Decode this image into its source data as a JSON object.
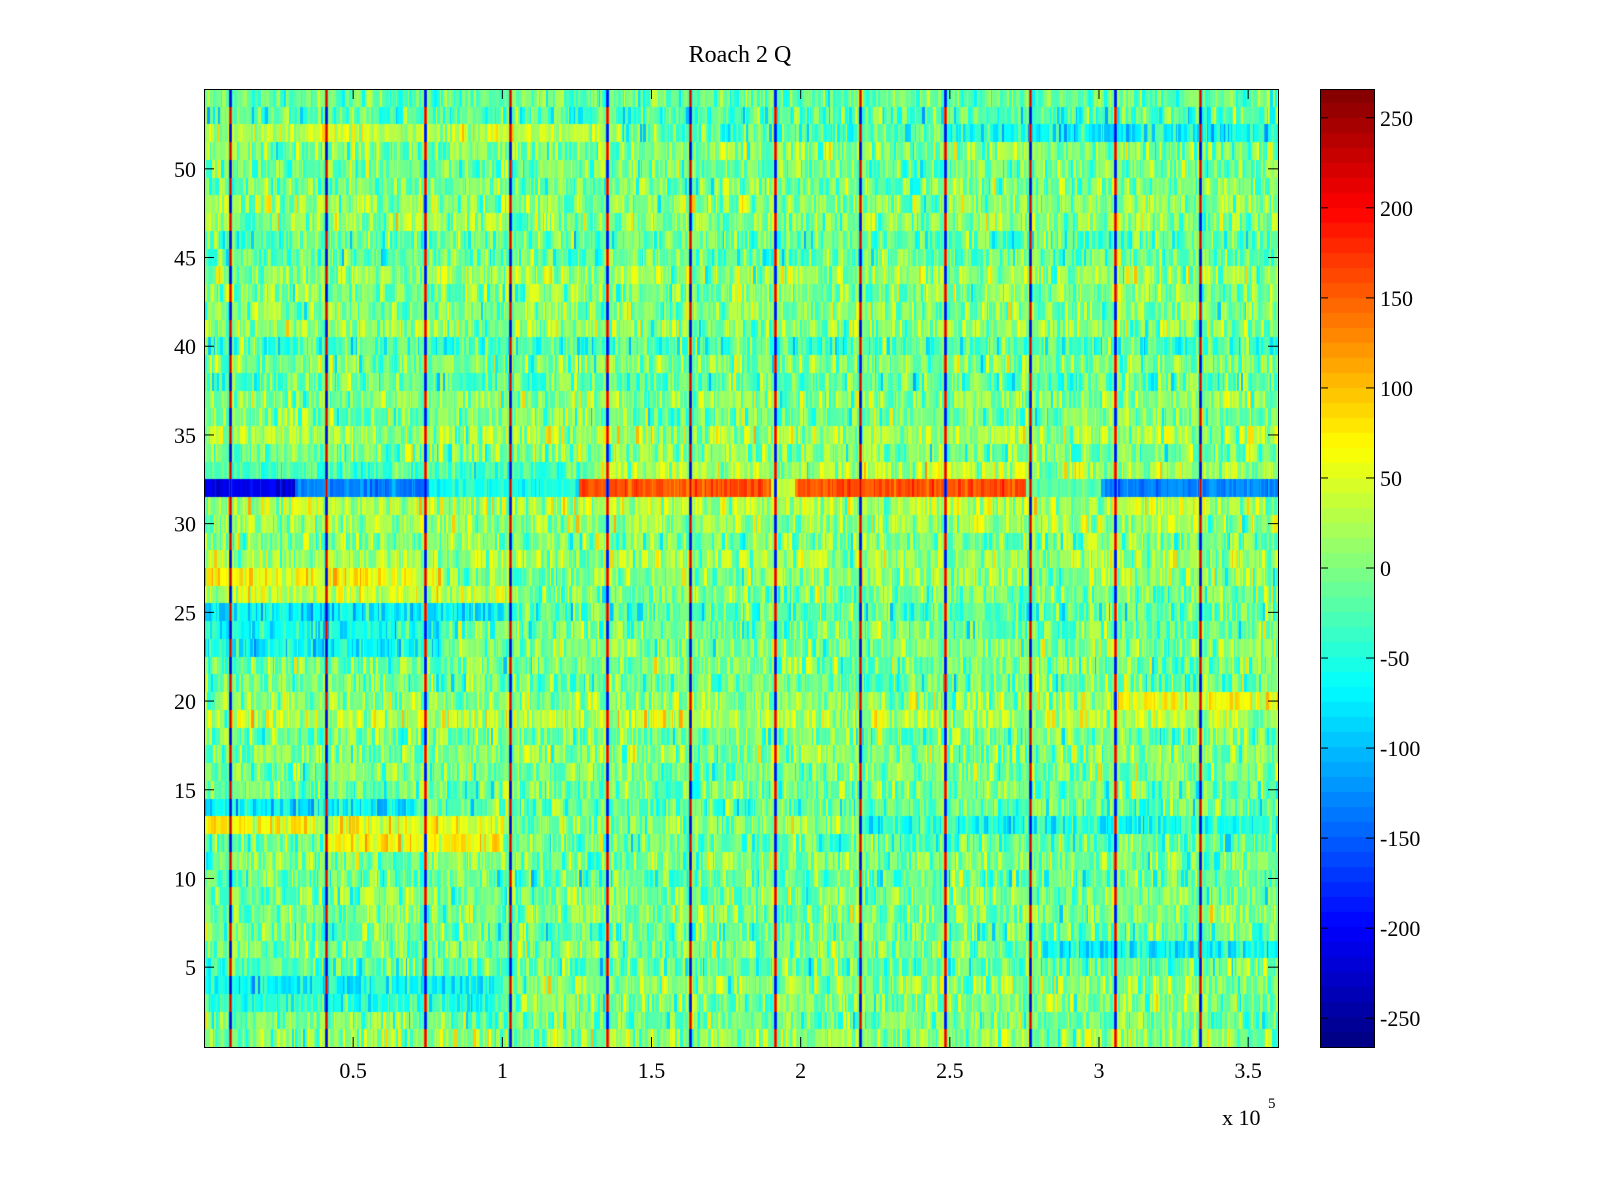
{
  "chart_data": {
    "type": "heatmap",
    "title": "Roach 2 Q",
    "xlabel": "",
    "ylabel": "",
    "x_multiplier_label": "x 10",
    "x_multiplier_exp": "5",
    "xlim": [
      0,
      3.6
    ],
    "ylim": [
      0.5,
      54.5
    ],
    "rows": 54,
    "xticks": [
      0.5,
      1,
      1.5,
      2,
      2.5,
      3,
      3.5
    ],
    "xtick_labels": [
      "0.5",
      "1",
      "1.5",
      "2",
      "2.5",
      "3",
      "3.5"
    ],
    "yticks": [
      5,
      10,
      15,
      20,
      25,
      30,
      35,
      40,
      45,
      50
    ],
    "ytick_labels": [
      "5",
      "10",
      "15",
      "20",
      "25",
      "30",
      "35",
      "40",
      "45",
      "50"
    ],
    "colormap": "jet",
    "clim": [
      -266,
      266
    ],
    "colorbar_ticks": [
      250,
      200,
      150,
      100,
      50,
      0,
      -50,
      -100,
      -150,
      -200,
      -250
    ],
    "colorbar_labels": [
      "250",
      "200",
      "150",
      "100",
      "50",
      "0",
      "-50",
      "-100",
      "-150",
      "-200",
      "-250"
    ],
    "background_mean": 0,
    "noise_std": 35,
    "spike_columns_x": [
      0.087,
      0.41,
      0.74,
      1.025,
      1.35,
      1.63,
      1.915,
      2.2,
      2.485,
      2.77,
      3.055,
      3.34
    ],
    "spike_amplitude": 230,
    "band_features": [
      {
        "row": 32,
        "x_from": 0,
        "x_to": 0.3,
        "value": -240
      },
      {
        "row": 32,
        "x_from": 0.3,
        "x_to": 0.75,
        "value": -150
      },
      {
        "row": 32,
        "x_from": 0.75,
        "x_to": 1.25,
        "value": -60
      },
      {
        "row": 32,
        "x_from": 1.25,
        "x_to": 1.9,
        "value": 190
      },
      {
        "row": 32,
        "x_from": 1.9,
        "x_to": 1.98,
        "value": 60
      },
      {
        "row": 32,
        "x_from": 1.98,
        "x_to": 2.75,
        "value": 190
      },
      {
        "row": 32,
        "x_from": 2.75,
        "x_to": 3.0,
        "value": -20
      },
      {
        "row": 32,
        "x_from": 3.0,
        "x_to": 3.6,
        "value": -150
      },
      {
        "row": 33,
        "x_from": 0,
        "x_to": 1.3,
        "value": -60
      },
      {
        "row": 52,
        "x_from": 0,
        "x_to": 1.4,
        "value": 70
      },
      {
        "row": 52,
        "x_from": 2.5,
        "x_to": 3.6,
        "value": -60
      },
      {
        "row": 27,
        "x_from": 0,
        "x_to": 0.8,
        "value": 80
      },
      {
        "row": 26,
        "x_from": 0,
        "x_to": 1.0,
        "value": 55
      },
      {
        "row": 25,
        "x_from": 0,
        "x_to": 1.0,
        "value": -80
      },
      {
        "row": 24,
        "x_from": 0,
        "x_to": 0.8,
        "value": -70
      },
      {
        "row": 23,
        "x_from": 0,
        "x_to": 0.8,
        "value": -90
      },
      {
        "row": 13,
        "x_from": 0,
        "x_to": 1.0,
        "value": 70
      },
      {
        "row": 12,
        "x_from": 0.4,
        "x_to": 1.0,
        "value": 100
      },
      {
        "row": 13,
        "x_from": 2.2,
        "x_to": 3.6,
        "value": -70
      },
      {
        "row": 14,
        "x_from": 0,
        "x_to": 0.7,
        "value": -80
      },
      {
        "row": 20,
        "x_from": 3.05,
        "x_to": 3.6,
        "value": 60
      },
      {
        "row": 6,
        "x_from": 2.8,
        "x_to": 3.6,
        "value": -90
      },
      {
        "row": 4,
        "x_from": 0,
        "x_to": 1.0,
        "value": -90
      },
      {
        "row": 3,
        "x_from": 0,
        "x_to": 1.0,
        "value": -60
      },
      {
        "row": 54,
        "x_from": 0,
        "x_to": 3.6,
        "value": -20
      }
    ]
  }
}
